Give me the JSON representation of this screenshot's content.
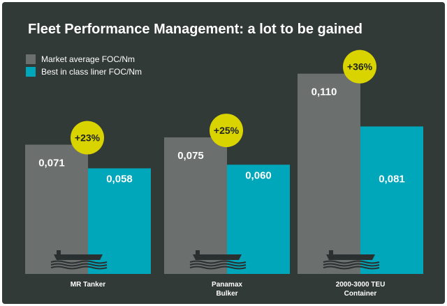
{
  "chart_data": {
    "type": "bar",
    "title": "Fleet Performance Management: a lot to be gained",
    "categories": [
      "MR Tanker",
      "Panamax\nBulker",
      "2000-3000 TEU\nContainer"
    ],
    "series": [
      {
        "name": "Market average FOC/Nm",
        "values": [
          0.071,
          0.075,
          0.11
        ],
        "labels": [
          "0,071",
          "0,075",
          "0,110"
        ],
        "color": "#6b6f6e"
      },
      {
        "name": "Best in class liner FOC/Nm",
        "values": [
          0.058,
          0.06,
          0.081
        ],
        "labels": [
          "0,058",
          "0,060",
          "0,081"
        ],
        "color": "#00a6b9"
      }
    ],
    "badges": [
      "+23%",
      "+25%",
      "+36%"
    ],
    "badge_color": "#d9d300",
    "background_color": "#323a38",
    "ylim": [
      0,
      0.12
    ],
    "grid": false,
    "legend_position": "top-left",
    "icon": "ship-icon",
    "xlabel": "",
    "ylabel": ""
  }
}
